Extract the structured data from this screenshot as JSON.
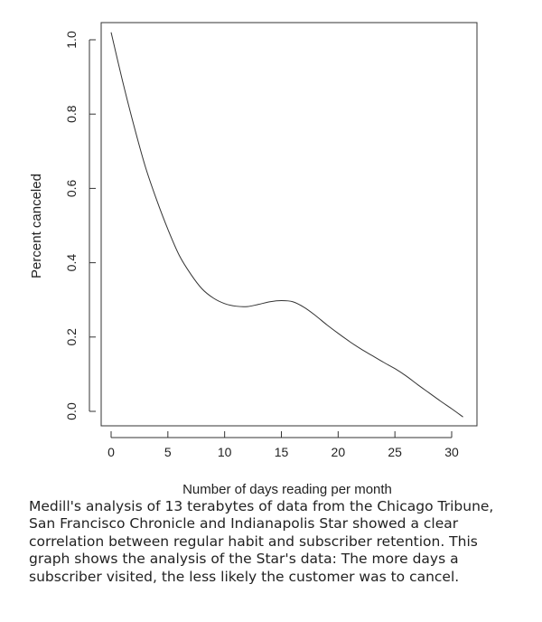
{
  "chart_data": {
    "type": "line",
    "title": "",
    "xlabel": "Number of days reading per month",
    "ylabel": "Percent canceled",
    "xlim": [
      0,
      31
    ],
    "ylim": [
      0,
      1.0
    ],
    "x_ticks": [
      "0",
      "5",
      "10",
      "15",
      "20",
      "25",
      "30"
    ],
    "y_ticks": [
      "0.0",
      "0.2",
      "0.4",
      "0.6",
      "0.8",
      "1.0"
    ],
    "grid": false,
    "series": [
      {
        "name": "Percent canceled",
        "x": [
          0,
          1,
          2,
          3,
          4,
          5,
          6,
          7,
          8,
          9,
          10,
          11,
          12,
          13,
          14,
          15,
          16,
          17,
          18,
          19,
          20,
          21,
          22,
          23,
          24,
          25,
          26,
          27,
          28,
          29,
          30,
          31
        ],
        "y": [
          1.02,
          0.89,
          0.77,
          0.66,
          0.57,
          0.49,
          0.42,
          0.37,
          0.33,
          0.305,
          0.29,
          0.283,
          0.282,
          0.288,
          0.295,
          0.298,
          0.295,
          0.28,
          0.258,
          0.233,
          0.21,
          0.188,
          0.168,
          0.15,
          0.132,
          0.115,
          0.095,
          0.072,
          0.05,
          0.028,
          0.007,
          -0.015
        ]
      }
    ]
  },
  "caption": "Medill's analysis of 13 terabytes of data from the Chicago Tribune, San Francisco Chronicle and Indianapolis Star showed a clear correlation between regular habit and subscriber retention. This graph shows the analysis of the Star's data: The more days a subscriber visited, the less likely the customer was to cancel."
}
